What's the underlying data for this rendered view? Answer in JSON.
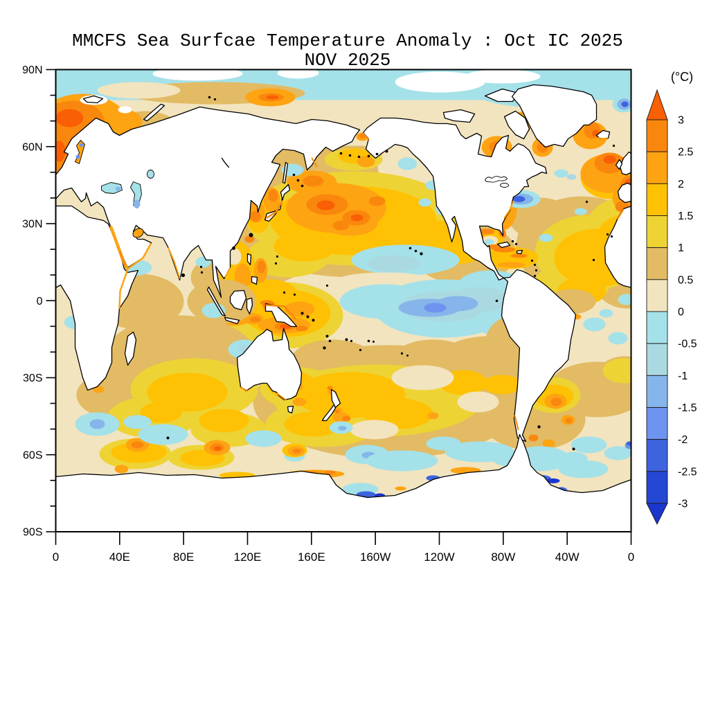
{
  "title": {
    "line1": "MMCFS Sea Surfcae Temperature Anomaly : Oct IC 2025",
    "line2": "NOV 2025"
  },
  "colorbar": {
    "unit_label": "(°C)",
    "tick_labels": [
      "3",
      "2.5",
      "2",
      "1.5",
      "1",
      "0.5",
      "0",
      "-0.5",
      "-1",
      "-1.5",
      "-2",
      "-2.5",
      "-3"
    ],
    "level_keys_top_to_bottom": [
      "p3x",
      "p25",
      "p2",
      "p15",
      "p1",
      "p05",
      "p0",
      "m05",
      "m1",
      "m15",
      "m2",
      "m25",
      "m3",
      "m3x"
    ]
  },
  "axes": {
    "y_tick_labels": [
      "90N",
      "60N",
      "30N",
      "0",
      "30S",
      "60S",
      "90S"
    ],
    "y_tick_lats": [
      90,
      60,
      30,
      0,
      -30,
      -60,
      -90
    ],
    "x_tick_labels": [
      "0",
      "40E",
      "80E",
      "120E",
      "160E",
      "160W",
      "120W",
      "80W",
      "40W",
      "0"
    ],
    "x_tick_lons": [
      0,
      40,
      80,
      120,
      160,
      200,
      240,
      280,
      320,
      360
    ]
  },
  "map": {
    "projection": "global cylindrical, 0E-360E, 90N-90S",
    "land_color": "#FFFFFF",
    "coastline_color": "#000000",
    "palette": {
      "p3x": "#F95F04",
      "p25": "#FA870D",
      "p2": "#FEA312",
      "p15": "#FFC103",
      "p1": "#EED334",
      "p05": "#E2BB64",
      "p0": "#F2E4BE",
      "m05": "#A5E1E9",
      "m1": "#ABD9E2",
      "m15": "#85B5EA",
      "m2": "#6E93F0",
      "m25": "#3D63DE",
      "m3": "#2447D4",
      "m3x": "#1B36CE"
    }
  }
}
